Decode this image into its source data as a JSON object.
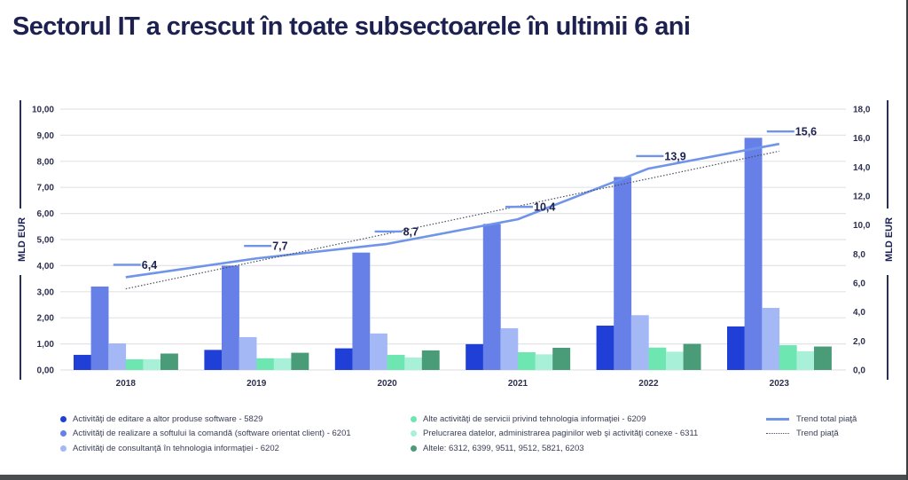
{
  "title": "Sectorul IT a crescut în toate subsectoarele în ultimii 6 ani",
  "chart_data": {
    "type": "bar",
    "title": "Sectorul IT a crescut în toate subsectoarele în ultimii 6 ani",
    "categories": [
      "2018",
      "2019",
      "2020",
      "2021",
      "2022",
      "2023"
    ],
    "xlabel": "",
    "ylabel": "MLD EUR",
    "ylabel_right": "MLD EUR",
    "ylim": [
      0,
      10
    ],
    "ylim_right": [
      0,
      18
    ],
    "yticks": [
      "0,00",
      "1,00",
      "2,00",
      "3,00",
      "4,00",
      "5,00",
      "6,00",
      "7,00",
      "8,00",
      "9,00",
      "10,00"
    ],
    "yticks_right": [
      "0,0",
      "2,0",
      "4,0",
      "6,0",
      "8,0",
      "10,0",
      "12,0",
      "14,0",
      "16,0",
      "18,0"
    ],
    "grid": true,
    "legend_position": "bottom",
    "series": [
      {
        "name": "Activităţi de editare a altor produse software - 5829",
        "color": "#1f3fd6",
        "axis": "left",
        "values": [
          0.58,
          0.77,
          0.83,
          0.99,
          1.7,
          1.67
        ]
      },
      {
        "name": "Activităţi de realizare a softului la comandă (software orientat client) - 6201",
        "color": "#6680e8",
        "axis": "left",
        "values": [
          3.2,
          4.0,
          4.5,
          5.6,
          7.4,
          8.9
        ]
      },
      {
        "name": "Activităţi de consultanţă în tehnologia informaţiei - 6202",
        "color": "#a3b8f5",
        "axis": "left",
        "values": [
          1.02,
          1.26,
          1.4,
          1.6,
          2.1,
          2.38
        ]
      },
      {
        "name": "Alte activităţi de servicii privind tehnologia informaţiei - 6209",
        "color": "#6ee6b2",
        "axis": "left",
        "values": [
          0.41,
          0.45,
          0.58,
          0.68,
          0.86,
          0.95
        ]
      },
      {
        "name": "Prelucrarea datelor, administrarea paginilor web şi activităţi conexe - 6311",
        "color": "#a8f0d8",
        "axis": "left",
        "values": [
          0.41,
          0.45,
          0.48,
          0.6,
          0.7,
          0.72
        ]
      },
      {
        "name": "Altele: 6312, 6399, 9511, 9512, 5821, 6203",
        "color": "#4a9c78",
        "axis": "left",
        "values": [
          0.63,
          0.66,
          0.75,
          0.85,
          1.0,
          0.9
        ]
      }
    ],
    "lines": [
      {
        "name": "Trend total piaţă",
        "style": "solid",
        "color": "#6f94e8",
        "axis": "right",
        "values": [
          6.4,
          7.7,
          8.7,
          10.4,
          13.9,
          15.6
        ],
        "labels": [
          "6,4",
          "7,7",
          "8,7",
          "10,4",
          "13,9",
          "15,6"
        ]
      },
      {
        "name": "Trend piaţă",
        "style": "dotted",
        "color": "#4a4d60",
        "axis": "right",
        "values": [
          5.6,
          7.5,
          9.4,
          11.3,
          13.2,
          15.1
        ]
      }
    ]
  }
}
